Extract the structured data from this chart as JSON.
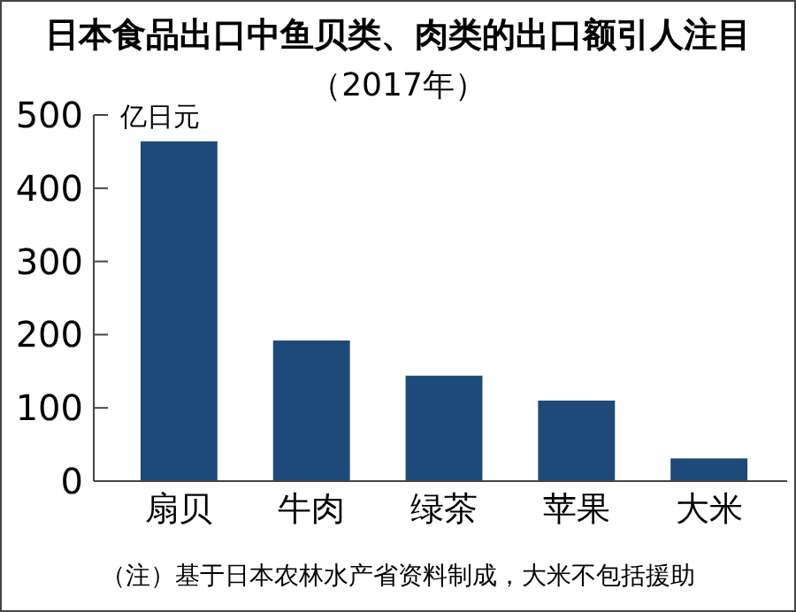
{
  "chart_data": {
    "type": "bar",
    "title": "日本食品出口中鱼贝类、肉类的出口额引人注目",
    "subtitle": "（2017年）",
    "ylabel": "亿日元",
    "categories": [
      "扇贝",
      "牛肉",
      "绿茶",
      "苹果",
      "大米"
    ],
    "values": [
      464,
      192,
      144,
      110,
      31
    ],
    "color": "#1d4a79",
    "ylim": [
      0,
      500
    ],
    "yticks": [
      0,
      100,
      200,
      300,
      400,
      500
    ],
    "grid": false,
    "annotations": [
      "（注）基于日本农林水产省资料制成，大米不包括援助"
    ]
  }
}
